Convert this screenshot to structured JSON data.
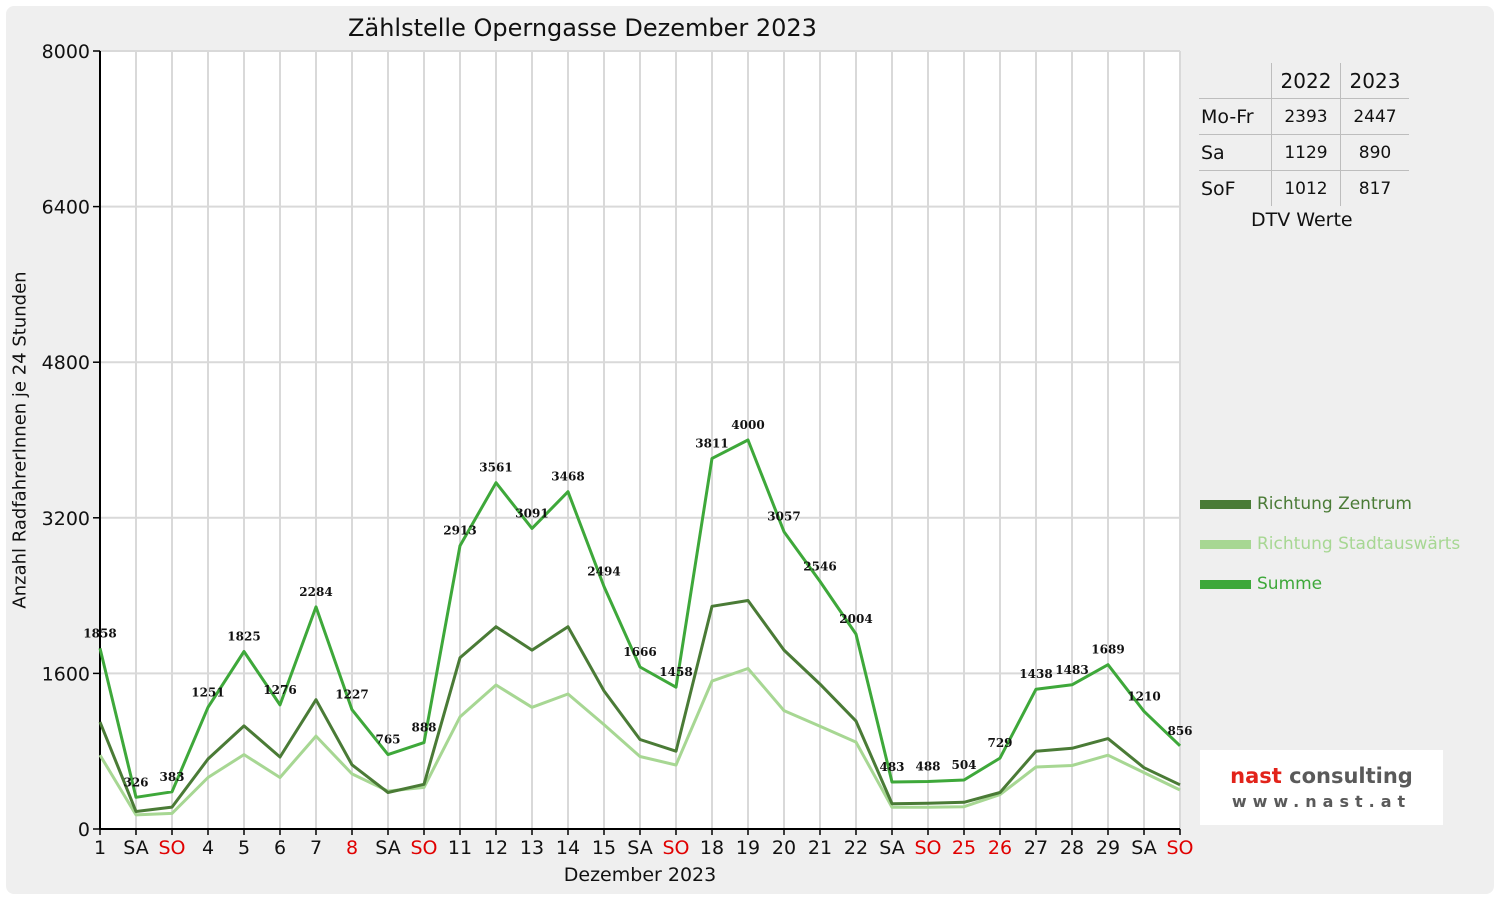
{
  "chart_data": {
    "type": "line",
    "title": "Zählstelle Operngasse Dezember 2023",
    "xlabel": "Dezember 2023",
    "ylabel": "Anzahl RadfahrerInnen je 24 Stunden",
    "ylim": [
      0,
      8000
    ],
    "yticks": [
      0,
      1600,
      3200,
      4800,
      6400,
      8000
    ],
    "grid": true,
    "legend_position": "right",
    "categories": [
      "1",
      "SA",
      "SO",
      "4",
      "5",
      "6",
      "7",
      "8",
      "SA",
      "SO",
      "11",
      "12",
      "13",
      "14",
      "15",
      "SA",
      "SO",
      "18",
      "19",
      "20",
      "21",
      "22",
      "SA",
      "SO",
      "25",
      "26",
      "27",
      "28",
      "29",
      "SA",
      "SO"
    ],
    "red_categories": [
      2,
      7,
      9,
      16,
      23,
      24,
      25,
      30
    ],
    "series": [
      {
        "name": "Richtung Zentrum",
        "color": "#4a7b36",
        "values": [
          1100,
          180,
          225,
          720,
          1060,
          740,
          1330,
          660,
          375,
          460,
          1760,
          2080,
          1840,
          2080,
          1420,
          920,
          800,
          2290,
          2350,
          1840,
          1490,
          1110,
          260,
          265,
          275,
          375,
          800,
          830,
          930,
          630,
          455
        ]
      },
      {
        "name": "Richtung Stadtauswärts",
        "color": "#a7d793",
        "values": [
          760,
          145,
          160,
          530,
          765,
          530,
          955,
          567,
          390,
          428,
          1153,
          1481,
          1251,
          1388,
          1074,
          746,
          658,
          1521,
          1650,
          1217,
          1056,
          894,
          223,
          223,
          229,
          354,
          638,
          653,
          759,
          580,
          401
        ]
      },
      {
        "name": "Summe",
        "color": "#3ea83a",
        "values": [
          1858,
          326,
          383,
          1251,
          1825,
          1276,
          2284,
          1227,
          765,
          888,
          2913,
          3561,
          3091,
          3468,
          2494,
          1666,
          1458,
          3811,
          4000,
          3057,
          2546,
          2004,
          483,
          488,
          504,
          729,
          1438,
          1483,
          1689,
          1210,
          856
        ]
      }
    ],
    "data_labels": [
      "1858",
      "326",
      "383",
      "1251",
      "1825",
      "1276",
      "2284",
      "1227",
      "765",
      "888",
      "2913",
      "3561",
      "3091",
      "3468",
      "2494",
      "1666",
      "1458",
      "3811",
      "4000",
      "3057",
      "2546",
      "2004",
      "483",
      "488",
      "504",
      "729",
      "1438",
      "1483",
      "1689",
      "1210",
      "856"
    ]
  },
  "dtv_table": {
    "headers": [
      "2022",
      "2023"
    ],
    "rows": [
      {
        "label": "Mo-Fr",
        "v2022": "2393",
        "v2023": "2447"
      },
      {
        "label": "Sa",
        "v2022": "1129",
        "v2023": "890"
      },
      {
        "label": "SoF",
        "v2022": "1012",
        "v2023": "817"
      }
    ],
    "caption": "DTV Werte"
  },
  "logo": {
    "brand_red": "nast",
    "brand_grey": "consulting",
    "url": "www.nast.at"
  },
  "colors": {
    "holiday_red": "#e00000",
    "grid": "#d9d9d9",
    "axis": "#000000",
    "background": "#efefef"
  }
}
